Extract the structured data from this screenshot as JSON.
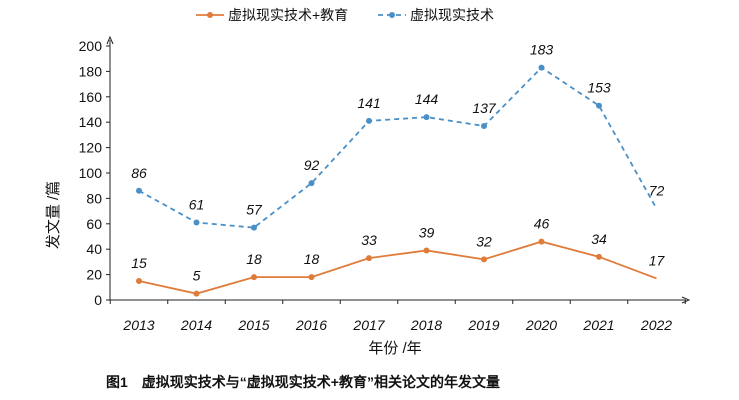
{
  "chart_data": {
    "type": "line",
    "categories": [
      "2013",
      "2014",
      "2015",
      "2016",
      "2017",
      "2018",
      "2019",
      "2020",
      "2021",
      "2022"
    ],
    "series": [
      {
        "name": "虚拟现实技术+教育",
        "values": [
          15,
          5,
          18,
          18,
          33,
          39,
          32,
          46,
          34,
          17
        ],
        "color": "#E07B39",
        "style": "solid"
      },
      {
        "name": "虚拟现实技术",
        "values": [
          86,
          61,
          57,
          92,
          141,
          144,
          137,
          183,
          153,
          72
        ],
        "color": "#4A90C8",
        "style": "dashed"
      }
    ],
    "ylim": [
      0,
      200
    ],
    "yticks": [
      "0",
      "20",
      "40",
      "60",
      "80",
      "100",
      "120",
      "140",
      "160",
      "180",
      "200"
    ],
    "xlabel": "年份 /年",
    "ylabel": "发文量 /篇",
    "legend_position": "top",
    "grid": false
  },
  "caption": {
    "number": "图1",
    "text": "虚拟现实技术与“虚拟现实技术+教育”相关论文的年发文量"
  }
}
